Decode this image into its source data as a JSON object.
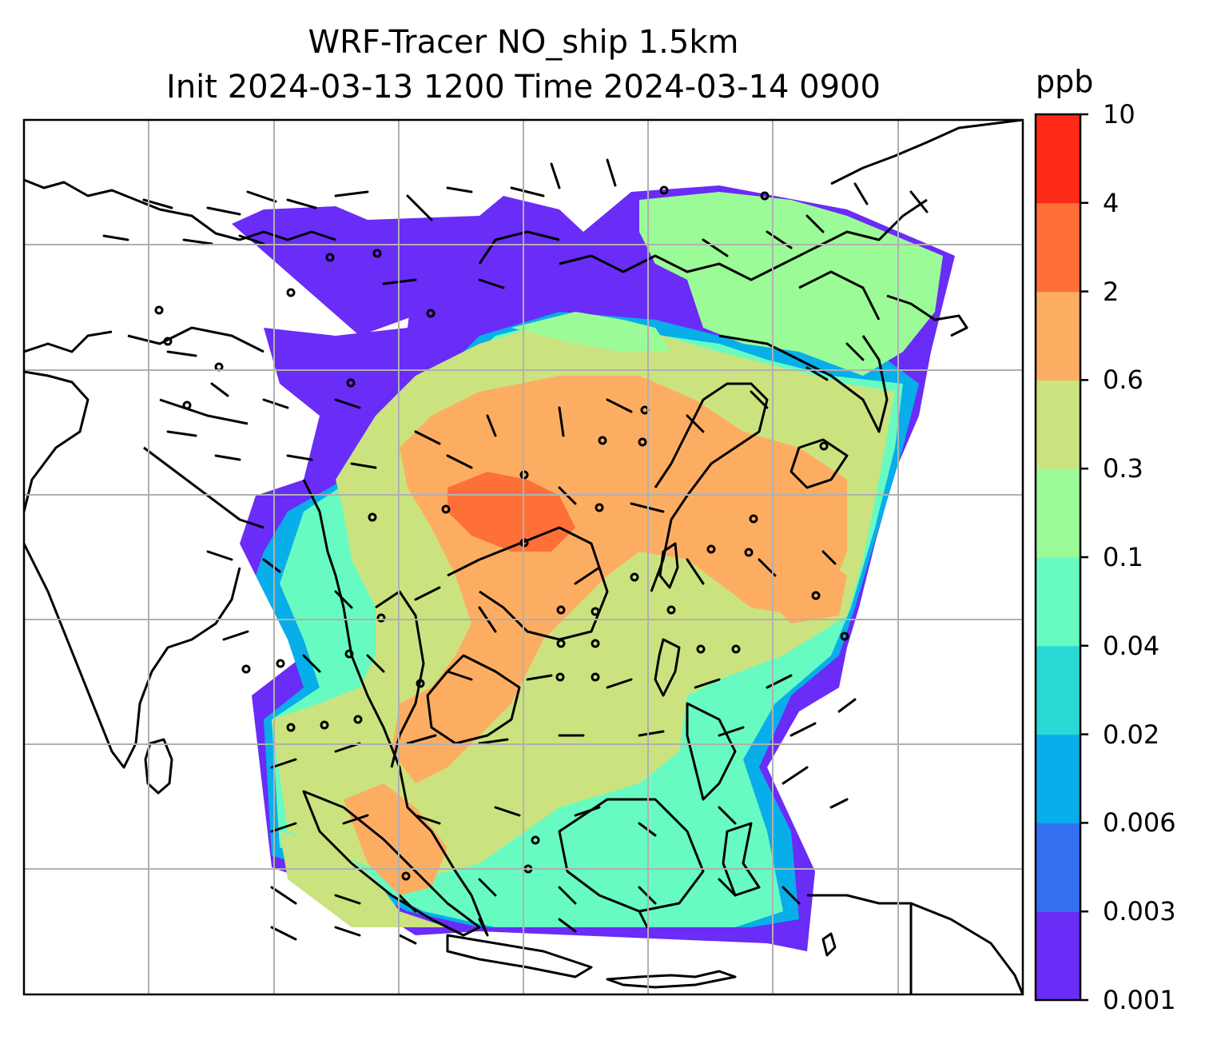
{
  "figure": {
    "title_line1": "WRF-Tracer NO_ship 1.5km",
    "title_line2": "Init 2024-03-13 1200 Time 2024-03-14 0900"
  },
  "colorbar": {
    "unit": "ppb",
    "ticks": [
      "0.001",
      "0.003",
      "0.006",
      "0.02",
      "0.04",
      "0.1",
      "0.3",
      "0.6",
      "2",
      "4",
      "10"
    ],
    "colors": [
      "#6a2cf7",
      "#3471f2",
      "#08aee9",
      "#2ad9d6",
      "#67fbc1",
      "#9bfb97",
      "#cbe37f",
      "#fdad62",
      "#fe7038",
      "#fe2a17"
    ]
  },
  "map": {
    "coastline_color": "#000000",
    "gridline_color": "#b0b0b0",
    "fill_levels": {
      "low": "#6a2cf7",
      "blue": "#08aee9",
      "cyan": "#2ad9d6",
      "aqua": "#67fbc1",
      "green": "#9bfb97",
      "yellowgreen": "#cbe37f",
      "orange": "#fdad62",
      "red": "#fe7038"
    }
  }
}
